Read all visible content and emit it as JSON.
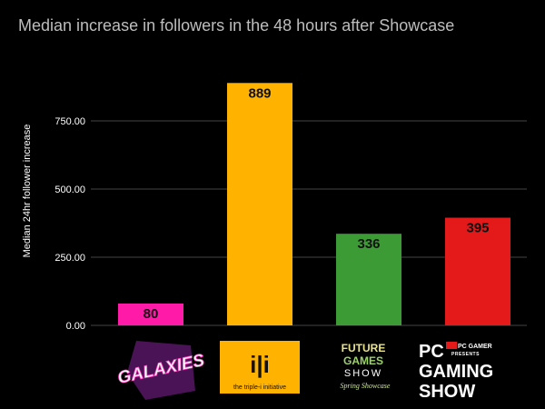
{
  "chart_data": {
    "type": "bar",
    "title": "Median increase in followers in the 48 hours after Showcase",
    "xlabel": "",
    "ylabel": "Median 24hr follower increase",
    "ylim": [
      0,
      960
    ],
    "yticks": [
      0,
      250,
      500,
      750
    ],
    "ytick_labels": [
      "0.00",
      "250.00",
      "500.00",
      "750.00"
    ],
    "grid": true,
    "categories": [
      "GALAXIES",
      "the triple-i initiative",
      "FUTURE GAMES SHOW Spring Showcase",
      "PC GAMER PRESENTS PC GAMING SHOW"
    ],
    "values": [
      80,
      889,
      336,
      395
    ],
    "data_labels": [
      "80",
      "889",
      "336",
      "395"
    ],
    "bar_colors": [
      "#ff1aa8",
      "#ffb300",
      "#3d9b35",
      "#e3191a"
    ],
    "background": "#000000",
    "gridline_color": "#444444"
  },
  "logos": {
    "galaxies": {
      "text": "GALAXIES"
    },
    "triple_i": {
      "mark": "i|i",
      "caption": "the triple-i initiative"
    },
    "fgs": {
      "line1": "FUTURE",
      "line2": "GAMES",
      "line3": "SHOW",
      "line4": "Spring Showcase"
    },
    "pcgs": {
      "top1": "PC",
      "top2": "PC GAMER",
      "top3": "PRESENTS",
      "line2": "GAMING",
      "line3": "SHOW"
    }
  }
}
